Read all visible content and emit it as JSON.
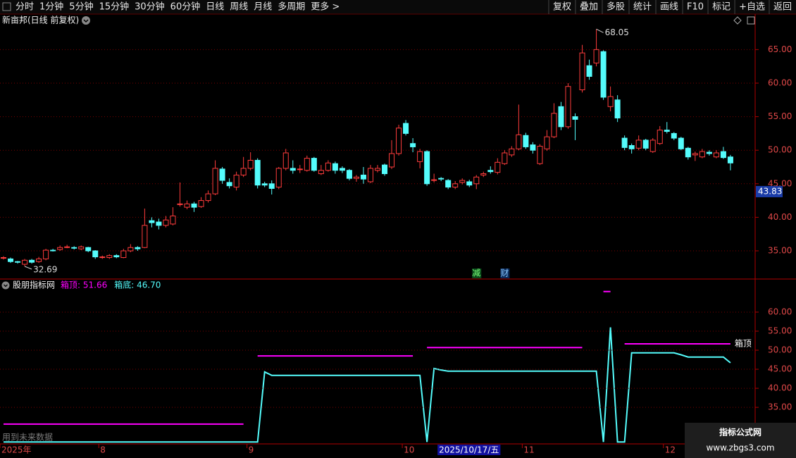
{
  "toolbar": {
    "left": [
      "分时",
      "1分钟",
      "5分钟",
      "15分钟",
      "30分钟",
      "60分钟",
      "日线",
      "周线",
      "月线",
      "多周期",
      "更多 >"
    ],
    "active": "日线",
    "right": [
      "复权",
      "叠加",
      "多股",
      "统计",
      "画线",
      "F10",
      "标记",
      "+自选",
      "返回"
    ]
  },
  "chart_data": [
    {
      "type": "candlestick",
      "title": "新亩邦(日线 前复权)",
      "up_color": "#ff3c3c",
      "down_color": "#54fcfc",
      "ylim": [
        30.8,
        68.4
      ],
      "yticks": [
        {
          "value": 35,
          "label": "35.00"
        },
        {
          "value": 40,
          "label": "40.00"
        },
        {
          "value": 45,
          "label": "45.00"
        },
        {
          "value": 50,
          "label": "50.00"
        },
        {
          "value": 55,
          "label": "55.00"
        },
        {
          "value": 60,
          "label": "60.00"
        },
        {
          "value": 65,
          "label": "65.00"
        }
      ],
      "grid": true,
      "open": [
        33.9,
        33.8,
        33.4,
        33.0,
        33.6,
        33.4,
        33.8,
        35.1,
        35.2,
        35.6,
        35.5,
        35.3,
        35.5,
        35.0,
        34.0,
        34.0,
        34.3,
        34.0,
        35.0,
        35.5,
        35.5,
        39.5,
        39.3,
        38.8,
        39.0,
        42.0,
        41.5,
        42.0,
        41.6,
        42.5,
        43.5,
        47.2,
        45.2,
        44.5,
        46.3,
        47.3,
        48.5,
        45.0,
        45.0,
        44.5,
        47.3,
        47.3,
        47.2,
        47.0,
        48.8,
        46.5,
        47.0,
        48.0,
        47.3,
        47.0,
        45.8,
        46.3,
        45.3,
        47.0,
        47.8,
        47.5,
        49.5,
        54.0,
        51.0,
        48.3,
        49.8,
        45.5,
        45.8,
        45.5,
        44.5,
        45.2,
        45.3,
        45.0,
        46.3,
        47.0,
        46.7,
        48.0,
        49.3,
        50.2,
        52.2,
        50.8,
        48.0,
        50.2,
        52.0,
        56.5,
        53.5,
        55.0,
        59.0,
        62.6,
        63.0,
        64.7,
        56.5,
        57.5,
        51.8,
        50.7,
        50.3,
        51.5,
        49.8,
        51.0,
        53.0,
        52.5,
        51.8,
        50.3,
        49.3,
        49.0,
        49.7,
        49.0,
        49.8,
        49.0
      ],
      "high": [
        34.2,
        34.0,
        33.5,
        33.8,
        33.8,
        34.1,
        35.3,
        35.3,
        35.8,
        35.9,
        35.7,
        35.8,
        35.6,
        35.1,
        34.3,
        34.5,
        34.5,
        35.3,
        36.0,
        35.7,
        41.3,
        40.0,
        39.8,
        40.2,
        41.5,
        45.2,
        42.5,
        42.3,
        43.0,
        44.0,
        48.5,
        47.5,
        45.8,
        46.8,
        49.0,
        49.7,
        48.8,
        45.3,
        45.5,
        47.5,
        50.2,
        48.5,
        47.8,
        49.2,
        49.0,
        47.8,
        48.5,
        48.3,
        47.6,
        47.2,
        46.3,
        47.5,
        47.8,
        47.8,
        48.0,
        51.5,
        53.8,
        54.5,
        51.8,
        50.2,
        50.0,
        46.5,
        46.0,
        45.7,
        45.4,
        45.8,
        45.6,
        46.3,
        46.8,
        47.6,
        48.8,
        50.0,
        50.6,
        56.8,
        52.6,
        51.2,
        50.9,
        53.0,
        57.0,
        57.2,
        60.0,
        55.5,
        65.7,
        63.5,
        68.05,
        64.9,
        59.5,
        58.2,
        52.2,
        51.0,
        52.2,
        51.7,
        51.8,
        53.6,
        54.2,
        52.7,
        52.0,
        50.5,
        49.8,
        50.2,
        50.0,
        50.0,
        50.5,
        49.3
      ],
      "low": [
        33.7,
        33.2,
        33.1,
        32.69,
        33.1,
        33.2,
        33.6,
        34.9,
        35.0,
        35.4,
        35.2,
        35.1,
        34.8,
        33.8,
        33.8,
        33.8,
        33.9,
        33.9,
        34.8,
        35.0,
        35.4,
        38.5,
        38.2,
        38.5,
        38.8,
        41.6,
        41.2,
        40.8,
        41.4,
        42.2,
        43.3,
        45.0,
        44.3,
        44.0,
        46.0,
        47.0,
        44.3,
        44.5,
        43.4,
        44.2,
        47.0,
        46.5,
        46.6,
        46.8,
        46.8,
        46.3,
        46.8,
        46.5,
        46.6,
        45.5,
        45.3,
        45.0,
        45.1,
        46.7,
        46.2,
        47.2,
        49.2,
        52.2,
        49.7,
        47.3,
        44.7,
        45.2,
        45.4,
        44.2,
        44.2,
        44.9,
        44.5,
        44.2,
        46.0,
        46.5,
        46.4,
        47.8,
        49.0,
        50.0,
        50.2,
        49.5,
        47.8,
        49.9,
        51.8,
        53.0,
        53.2,
        51.5,
        58.6,
        60.5,
        62.5,
        57.5,
        55.8,
        54.2,
        50.0,
        49.5,
        50.0,
        50.0,
        49.6,
        50.8,
        52.5,
        51.5,
        50.0,
        48.6,
        48.4,
        48.8,
        49.2,
        48.8,
        48.7,
        47.0
      ],
      "close": [
        34.0,
        33.4,
        33.3,
        33.6,
        33.3,
        33.8,
        35.1,
        35.0,
        35.5,
        35.6,
        35.4,
        35.6,
        35.0,
        34.1,
        34.1,
        34.3,
        34.1,
        35.0,
        35.5,
        35.3,
        38.8,
        39.2,
        38.8,
        39.6,
        40.2,
        42.0,
        42.0,
        41.5,
        42.5,
        43.5,
        47.3,
        45.5,
        44.7,
        46.3,
        47.3,
        48.5,
        44.8,
        44.8,
        44.3,
        47.3,
        49.6,
        47.0,
        47.2,
        48.8,
        47.0,
        47.0,
        48.1,
        47.0,
        47.0,
        45.8,
        46.0,
        45.7,
        47.3,
        47.3,
        46.5,
        49.5,
        53.3,
        52.5,
        50.5,
        49.8,
        45.0,
        45.6,
        45.7,
        44.5,
        45.0,
        45.5,
        44.8,
        46.0,
        46.5,
        46.8,
        48.2,
        49.6,
        50.2,
        52.3,
        50.5,
        50.0,
        50.6,
        52.0,
        55.5,
        53.5,
        59.5,
        54.6,
        64.5,
        61.0,
        65.0,
        57.9,
        58.0,
        54.8,
        50.4,
        50.2,
        51.5,
        50.3,
        51.5,
        53.0,
        52.8,
        51.8,
        50.2,
        49.0,
        49.5,
        49.8,
        49.5,
        49.6,
        48.9,
        48.1
      ],
      "max_label": 68.05,
      "min_label": 32.69,
      "cursor_value": 43.83,
      "events": [
        {
          "index": 67,
          "label": "减"
        },
        {
          "index": 71,
          "label": "财"
        }
      ],
      "xticks": [
        {
          "value": 0,
          "label": "2025年"
        },
        {
          "value": 14,
          "label": "8"
        },
        {
          "value": 35,
          "label": "9"
        },
        {
          "value": 57,
          "label": "10"
        },
        {
          "value": 74,
          "label": "11"
        },
        {
          "value": 94,
          "label": "12"
        }
      ],
      "cursor_date": {
        "value": 62,
        "label": "2025/10/17/五"
      }
    },
    {
      "type": "line",
      "title": "股朋指标网",
      "note": "用到未来数据",
      "ylim": [
        25.4,
        68.5
      ],
      "yticks": [
        {
          "value": 35,
          "label": "35.00"
        },
        {
          "value": 40,
          "label": "40.00"
        },
        {
          "value": 45,
          "label": "45.00"
        },
        {
          "value": 50,
          "label": "50.00"
        },
        {
          "value": 55,
          "label": "55.00"
        },
        {
          "value": 60,
          "label": "60.00"
        }
      ],
      "grid": true,
      "series": [
        {
          "name": "箱顶",
          "legend": "箱顶: 51.66",
          "color": "#ff00ff",
          "values": [
            30.6,
            30.6,
            30.6,
            30.6,
            30.6,
            30.6,
            30.6,
            30.6,
            30.6,
            30.6,
            30.6,
            30.6,
            30.6,
            30.6,
            30.6,
            30.6,
            30.6,
            30.6,
            30.6,
            30.6,
            30.6,
            30.6,
            30.6,
            30.6,
            30.6,
            30.6,
            30.6,
            30.6,
            30.6,
            30.6,
            30.6,
            30.6,
            30.6,
            30.6,
            30.6,
            null,
            48.5,
            48.5,
            48.5,
            48.5,
            48.5,
            48.5,
            48.5,
            48.5,
            48.5,
            48.5,
            48.5,
            48.5,
            48.5,
            48.5,
            48.5,
            48.5,
            48.5,
            48.5,
            48.5,
            48.5,
            48.5,
            48.5,
            48.5,
            null,
            50.7,
            50.7,
            50.7,
            50.7,
            50.7,
            50.7,
            50.7,
            50.7,
            50.7,
            50.7,
            50.7,
            50.7,
            50.7,
            50.7,
            50.7,
            50.7,
            50.7,
            50.7,
            50.7,
            50.7,
            50.7,
            50.7,
            50.7,
            null,
            null,
            65.4,
            65.4,
            null,
            51.66,
            51.66,
            51.66,
            51.66,
            51.66,
            51.66,
            51.66,
            51.66,
            51.66,
            51.66,
            51.66,
            51.66,
            51.66,
            51.66,
            51.66,
            51.66
          ]
        },
        {
          "name": "箱底",
          "legend": "箱底: 46.70",
          "color": "#54fcfc",
          "values": [
            25.9,
            25.9,
            25.9,
            25.9,
            25.9,
            25.9,
            25.9,
            25.9,
            25.9,
            25.9,
            25.9,
            25.9,
            25.9,
            25.9,
            25.9,
            25.9,
            25.9,
            25.9,
            25.9,
            25.9,
            25.9,
            25.9,
            25.9,
            25.9,
            25.9,
            25.9,
            25.9,
            25.9,
            25.9,
            25.9,
            25.9,
            25.9,
            25.9,
            25.9,
            25.9,
            25.9,
            25.9,
            44.3,
            43.4,
            43.4,
            43.4,
            43.4,
            43.4,
            43.4,
            43.4,
            43.4,
            43.4,
            43.4,
            43.4,
            43.4,
            43.4,
            43.4,
            43.4,
            43.4,
            43.4,
            43.4,
            43.4,
            43.4,
            43.4,
            43.4,
            25.9,
            45.2,
            44.8,
            44.5,
            44.5,
            44.5,
            44.5,
            44.5,
            44.5,
            44.5,
            44.5,
            44.5,
            44.5,
            44.5,
            44.5,
            44.5,
            44.5,
            44.5,
            44.5,
            44.5,
            44.5,
            44.5,
            44.5,
            44.5,
            44.5,
            25.9,
            56.0,
            25.9,
            25.9,
            49.3,
            49.3,
            49.3,
            49.3,
            49.3,
            49.3,
            49.3,
            48.8,
            48.2,
            48.2,
            48.2,
            48.2,
            48.2,
            48.2,
            46.7
          ]
        }
      ]
    }
  ],
  "watermark": {
    "title": "指标公式网",
    "url": "www.zbgs3.com"
  }
}
